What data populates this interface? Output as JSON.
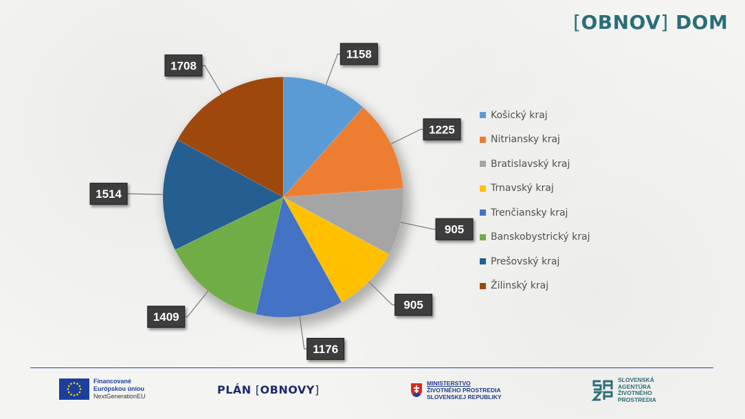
{
  "brand": {
    "left_bracket": "[",
    "obnov": "OBNOV",
    "right_bracket": "]",
    "dom": "DOM"
  },
  "chart_data": {
    "type": "pie",
    "slices": [
      {
        "label": "Košický kraj",
        "value": 1158,
        "color": "#5b9bd5"
      },
      {
        "label": "Nitriansky kraj",
        "value": 1225,
        "color": "#ed7d31"
      },
      {
        "label": "Bratislavský kraj",
        "value": 905,
        "color": "#a5a5a5"
      },
      {
        "label": "Trnavský kraj",
        "value": 905,
        "color": "#ffc000"
      },
      {
        "label": "Trenčiansky kraj",
        "value": 1176,
        "color": "#4472c4"
      },
      {
        "label": "Banskobystrický kraj",
        "value": 1409,
        "color": "#70ad47"
      },
      {
        "label": "Prešovský kraj",
        "value": 1514,
        "color": "#255e91"
      },
      {
        "label": "Žilinský kraj",
        "value": 1708,
        "color": "#9e480e"
      }
    ],
    "data_labels": true,
    "legend_position": "right"
  },
  "footer": {
    "eu": {
      "line1": "Financované",
      "line2": "Európskou úniou",
      "line3": "NextGenerationEU"
    },
    "plan": {
      "word": "PLÁN",
      "left_bracket": "[",
      "obnovy": "OBNOVY",
      "right_bracket": "]"
    },
    "ministry": {
      "line1": "MINISTERSTVO",
      "line2": "ŽIVOTNÉHO PROSTREDIA",
      "line3": "SLOVENSKEJ REPUBLIKY"
    },
    "sazp": {
      "line1": "SLOVENSKÁ",
      "line2": "AGENTÚRA",
      "line3": "ŽIVOTNÉHO",
      "line4": "PROSTREDIA"
    }
  }
}
